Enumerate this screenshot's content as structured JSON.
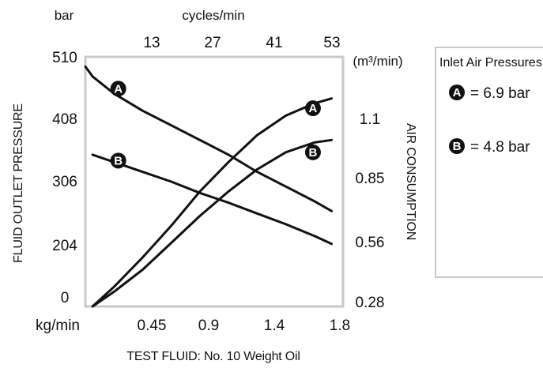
{
  "chart_data": {
    "type": "line",
    "xlabel": "TEST FLUID: No. 10 Weight Oil",
    "left_axis": {
      "title": "FLUID OUTLET PRESSURE",
      "unit": "bar",
      "ylim": [
        0,
        510
      ],
      "ticks": [
        "0",
        "204",
        "306",
        "408",
        "510"
      ]
    },
    "right_axis": {
      "title": "AIR CONSUMPTION",
      "unit": "(m³/min)",
      "ylim": [
        0.28,
        1.3
      ],
      "ticks": [
        "0.28",
        "0.56",
        "0.85",
        "1.1"
      ]
    },
    "bottom_axis": {
      "unit": "kg/min",
      "xlim": [
        0,
        1.8
      ],
      "ticks": [
        "0.45",
        "0.9",
        "1.4",
        "1.8"
      ]
    },
    "top_axis": {
      "unit": "cycles/min",
      "ticks": [
        "13",
        "27",
        "41",
        "53"
      ]
    },
    "legend": {
      "title": "Inlet Air Pressures:",
      "items": [
        {
          "marker": "A",
          "text": "= 6.9 bar"
        },
        {
          "marker": "B",
          "text": "= 4.8 bar"
        }
      ]
    },
    "series": [
      {
        "marker": "A",
        "axis": "left",
        "points": [
          [
            0.0,
            490
          ],
          [
            0.05,
            470
          ],
          [
            0.2,
            435
          ],
          [
            0.4,
            400
          ],
          [
            0.6,
            370
          ],
          [
            0.8,
            340
          ],
          [
            1.0,
            310
          ],
          [
            1.2,
            275
          ],
          [
            1.4,
            245
          ],
          [
            1.6,
            215
          ],
          [
            1.72,
            195
          ]
        ]
      },
      {
        "marker": "B",
        "axis": "left",
        "points": [
          [
            0.05,
            310
          ],
          [
            0.2,
            295
          ],
          [
            0.4,
            275
          ],
          [
            0.6,
            255
          ],
          [
            0.8,
            232
          ],
          [
            1.0,
            212
          ],
          [
            1.2,
            190
          ],
          [
            1.4,
            168
          ],
          [
            1.6,
            144
          ],
          [
            1.72,
            128
          ]
        ]
      },
      {
        "marker": "A",
        "axis": "right",
        "points": [
          [
            0.05,
            0.28
          ],
          [
            0.2,
            0.36
          ],
          [
            0.4,
            0.48
          ],
          [
            0.6,
            0.61
          ],
          [
            0.8,
            0.75
          ],
          [
            1.0,
            0.87
          ],
          [
            1.2,
            0.98
          ],
          [
            1.4,
            1.06
          ],
          [
            1.6,
            1.11
          ],
          [
            1.72,
            1.13
          ]
        ]
      },
      {
        "marker": "B",
        "axis": "right",
        "points": [
          [
            0.05,
            0.28
          ],
          [
            0.2,
            0.34
          ],
          [
            0.4,
            0.43
          ],
          [
            0.6,
            0.54
          ],
          [
            0.8,
            0.65
          ],
          [
            1.0,
            0.75
          ],
          [
            1.2,
            0.84
          ],
          [
            1.4,
            0.91
          ],
          [
            1.6,
            0.95
          ],
          [
            1.72,
            0.96
          ]
        ]
      }
    ],
    "curve_markers": [
      {
        "label": "A",
        "axis": "left",
        "x": 0.23,
        "y": 445
      },
      {
        "label": "B",
        "axis": "left",
        "x": 0.23,
        "y": 298
      },
      {
        "label": "A",
        "axis": "right",
        "x": 1.59,
        "y": 1.09
      },
      {
        "label": "B",
        "axis": "right",
        "x": 1.59,
        "y": 0.91
      }
    ]
  }
}
